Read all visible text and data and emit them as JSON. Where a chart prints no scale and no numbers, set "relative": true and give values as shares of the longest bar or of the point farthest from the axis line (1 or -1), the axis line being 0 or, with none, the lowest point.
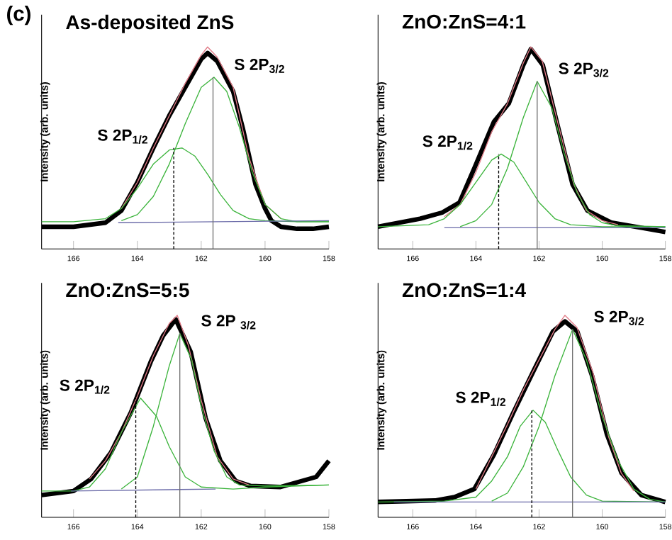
{
  "chart_data": [
    {
      "type": "line",
      "title": "As-deposited ZnS",
      "ylabel": "Intensity (arb. units)",
      "relative": true,
      "xlim": [
        167,
        158
      ],
      "xticks": [
        166,
        164,
        162,
        160,
        158
      ],
      "annotations": [
        "S 2P$_{1/2}$",
        "S 2P$_{3/2}$",
        "(c)"
      ],
      "series": [
        {
          "color": "#000000",
          "x": [
            167,
            166,
            165,
            164.5,
            164,
            163.5,
            163,
            162.5,
            162,
            161.8,
            161.5,
            161,
            160.7,
            160.3,
            160,
            159.8,
            159.5,
            159,
            158.5,
            158
          ],
          "values": [
            0.11,
            0.11,
            0.13,
            0.19,
            0.33,
            0.5,
            0.66,
            0.8,
            0.94,
            0.97,
            0.93,
            0.78,
            0.6,
            0.32,
            0.2,
            0.14,
            0.11,
            0.1,
            0.1,
            0.11
          ]
        },
        {
          "color": "#e07a86",
          "x": [
            164.5,
            164,
            163.5,
            163,
            162.5,
            162,
            161.8,
            161.5,
            161,
            160.5,
            160,
            159.5
          ],
          "values": [
            0.2,
            0.33,
            0.5,
            0.66,
            0.82,
            0.96,
            1.0,
            0.95,
            0.8,
            0.45,
            0.22,
            0.15
          ]
        },
        {
          "color": "#3cb43c",
          "x": [
            164.5,
            164,
            163.5,
            163,
            162.5,
            162,
            161.6,
            161.2,
            160.8,
            160.4,
            160,
            159.5,
            159,
            158
          ],
          "values": [
            0.14,
            0.17,
            0.26,
            0.42,
            0.62,
            0.8,
            0.85,
            0.78,
            0.6,
            0.38,
            0.22,
            0.15,
            0.135,
            0.135
          ]
        },
        {
          "color": "#3cb43c",
          "x": [
            167,
            166,
            165,
            164.5,
            164,
            163.5,
            163,
            162.6,
            162.2,
            161.8,
            161.4,
            161,
            160.5,
            160,
            159,
            158
          ],
          "values": [
            0.135,
            0.135,
            0.15,
            0.2,
            0.3,
            0.42,
            0.49,
            0.5,
            0.46,
            0.37,
            0.27,
            0.19,
            0.15,
            0.14,
            0.135,
            0.135
          ]
        },
        {
          "color": "#6a6aa8",
          "x": [
            164.6,
            158
          ],
          "values": [
            0.13,
            0.14
          ]
        },
        {
          "color": "#000000",
          "line_style": "dashed",
          "x": [
            162.86,
            162.86
          ],
          "values": [
            0,
            0.5
          ]
        },
        {
          "color": "#707070",
          "line_style": "solid",
          "x": [
            161.63,
            161.63
          ],
          "values": [
            0,
            0.85
          ]
        }
      ]
    },
    {
      "type": "line",
      "title": "ZnO:ZnS=4:1",
      "ylabel": "Intensity (arb. units)",
      "relative": true,
      "xlim": [
        167.1,
        158
      ],
      "xticks": [
        166,
        164,
        162,
        160,
        158
      ],
      "annotations": [
        "S 2P$_{1/2}$",
        "S 2P$_{3/2}$"
      ],
      "series": [
        {
          "color": "#000000",
          "x": [
            167.1,
            165.77,
            165.07,
            164.52,
            164.05,
            163.43,
            162.96,
            162.5,
            162.26,
            161.88,
            161.41,
            160.94,
            160.47,
            159.7,
            158.76,
            158
          ],
          "values": [
            0.11,
            0.15,
            0.18,
            0.23,
            0.4,
            0.63,
            0.72,
            0.91,
            0.99,
            0.91,
            0.61,
            0.32,
            0.19,
            0.13,
            0.105,
            0.084
          ]
        },
        {
          "color": "#e07a86",
          "x": [
            165,
            164.5,
            164,
            163.5,
            163,
            162.5,
            162.26,
            161.9,
            161.4,
            160.9,
            160.5,
            160,
            159.5
          ],
          "values": [
            0.16,
            0.22,
            0.38,
            0.58,
            0.72,
            0.92,
            1.0,
            0.93,
            0.62,
            0.32,
            0.19,
            0.14,
            0.12
          ]
        },
        {
          "color": "#3cb43c",
          "x": [
            164.5,
            164,
            163.5,
            163,
            162.5,
            162.06,
            161.6,
            161.2,
            160.8,
            160.4,
            160,
            159.5,
            158
          ],
          "values": [
            0.11,
            0.14,
            0.22,
            0.4,
            0.65,
            0.83,
            0.7,
            0.47,
            0.28,
            0.17,
            0.13,
            0.115,
            0.11
          ]
        },
        {
          "color": "#3cb43c",
          "x": [
            167.1,
            165.5,
            165,
            164.5,
            164,
            163.5,
            163.2,
            162.8,
            162.4,
            162,
            161.5,
            161,
            160,
            158
          ],
          "values": [
            0.11,
            0.12,
            0.15,
            0.22,
            0.33,
            0.44,
            0.47,
            0.43,
            0.33,
            0.23,
            0.15,
            0.12,
            0.11,
            0.11
          ]
        },
        {
          "color": "#6a6aa8",
          "x": [
            165,
            158
          ],
          "values": [
            0.105,
            0.105
          ]
        },
        {
          "color": "#000000",
          "line_style": "dashed",
          "x": [
            163.28,
            163.28
          ],
          "values": [
            0,
            0.47
          ]
        },
        {
          "color": "#707070",
          "line_style": "solid",
          "x": [
            162.06,
            162.06
          ],
          "values": [
            0,
            0.83
          ]
        }
      ]
    },
    {
      "type": "line",
      "title": "ZnO:ZnS=5:5",
      "ylabel": "Intensity (arb. units)",
      "relative": true,
      "xlim": [
        167,
        158
      ],
      "xticks": [
        166,
        164,
        162,
        160,
        158
      ],
      "annotations": [
        "S 2P$_{1/2}$",
        "S 2P $_{3/2}$"
      ],
      "series": [
        {
          "color": "#000000",
          "x": [
            167,
            166,
            165.45,
            164.83,
            164.2,
            163.58,
            163.19,
            162.8,
            162.33,
            161.86,
            161.4,
            160.92,
            160.45,
            159.52,
            158.4,
            158
          ],
          "values": [
            0.11,
            0.13,
            0.19,
            0.32,
            0.52,
            0.77,
            0.9,
            0.98,
            0.82,
            0.49,
            0.28,
            0.18,
            0.155,
            0.15,
            0.2,
            0.28
          ]
        },
        {
          "color": "#e07a86",
          "x": [
            165.5,
            165,
            164.5,
            164,
            163.5,
            163,
            162.75,
            162.4,
            162,
            161.5,
            161,
            160.5
          ],
          "values": [
            0.19,
            0.28,
            0.42,
            0.6,
            0.8,
            0.96,
            1.0,
            0.85,
            0.58,
            0.3,
            0.19,
            0.16
          ]
        },
        {
          "color": "#3cb43c",
          "x": [
            164.5,
            164,
            163.5,
            163,
            162.67,
            162.3,
            162,
            161.6,
            161.2,
            160.8,
            160,
            158
          ],
          "values": [
            0.14,
            0.2,
            0.45,
            0.75,
            0.91,
            0.78,
            0.55,
            0.33,
            0.2,
            0.16,
            0.155,
            0.16
          ]
        },
        {
          "color": "#3cb43c",
          "x": [
            167,
            166,
            165.5,
            165,
            164.5,
            163.9,
            163.4,
            163,
            162.5,
            162,
            161,
            160,
            158
          ],
          "values": [
            0.13,
            0.13,
            0.15,
            0.24,
            0.42,
            0.59,
            0.5,
            0.35,
            0.2,
            0.15,
            0.14,
            0.15,
            0.16
          ]
        },
        {
          "color": "#6a6aa8",
          "x": [
            166.08,
            161.55
          ],
          "values": [
            0.13,
            0.14
          ]
        },
        {
          "color": "#000000",
          "line_style": "dashed",
          "x": [
            164.05,
            164.05
          ],
          "values": [
            0,
            0.59
          ]
        },
        {
          "color": "#707070",
          "line_style": "solid",
          "x": [
            162.67,
            162.67
          ],
          "values": [
            0,
            0.91
          ]
        }
      ]
    },
    {
      "type": "line",
      "title": "ZnO:ZnS=1:4",
      "ylabel": "Intensity (arb. units)",
      "relative": true,
      "xlim": [
        167.1,
        158
      ],
      "xticks": [
        166,
        164,
        162,
        160,
        158
      ],
      "annotations": [
        "S 2P$_{1/2}$",
        "S 2P$_{3/2}$"
      ],
      "series": [
        {
          "color": "#000000",
          "x": [
            167.1,
            165.3,
            164.68,
            164.05,
            163.43,
            162.81,
            162.19,
            161.56,
            161.18,
            160.79,
            160.32,
            159.85,
            159.39,
            158.76,
            158
          ],
          "values": [
            0.076,
            0.083,
            0.1,
            0.14,
            0.31,
            0.52,
            0.72,
            0.92,
            0.97,
            0.92,
            0.7,
            0.41,
            0.22,
            0.11,
            0.076
          ]
        },
        {
          "color": "#e07a86",
          "x": [
            164,
            163.5,
            163,
            162.5,
            162,
            161.5,
            161.18,
            160.8,
            160.3,
            159.8,
            159.4,
            159
          ],
          "values": [
            0.14,
            0.3,
            0.46,
            0.63,
            0.78,
            0.93,
            1.0,
            0.94,
            0.72,
            0.4,
            0.22,
            0.13
          ]
        },
        {
          "color": "#3cb43c",
          "x": [
            163.5,
            163,
            162.5,
            162,
            161.5,
            160.94,
            160.5,
            160,
            159.5,
            159,
            158.5,
            158
          ],
          "values": [
            0.08,
            0.12,
            0.25,
            0.45,
            0.7,
            0.93,
            0.78,
            0.5,
            0.28,
            0.14,
            0.09,
            0.076
          ]
        },
        {
          "color": "#3cb43c",
          "x": [
            167.1,
            165,
            164,
            163.5,
            163,
            162.6,
            162.19,
            161.8,
            161.4,
            161,
            160.5,
            160,
            158
          ],
          "values": [
            0.076,
            0.08,
            0.1,
            0.18,
            0.3,
            0.45,
            0.53,
            0.47,
            0.33,
            0.2,
            0.11,
            0.08,
            0.076
          ]
        },
        {
          "color": "#6a6aa8",
          "x": [
            166.6,
            158
          ],
          "values": [
            0.076,
            0.076
          ]
        },
        {
          "color": "#000000",
          "line_style": "dashed",
          "x": [
            162.23,
            162.23
          ],
          "values": [
            0,
            0.53
          ]
        },
        {
          "color": "#707070",
          "line_style": "solid",
          "x": [
            160.94,
            160.94
          ],
          "values": [
            0,
            0.93
          ]
        }
      ]
    }
  ]
}
